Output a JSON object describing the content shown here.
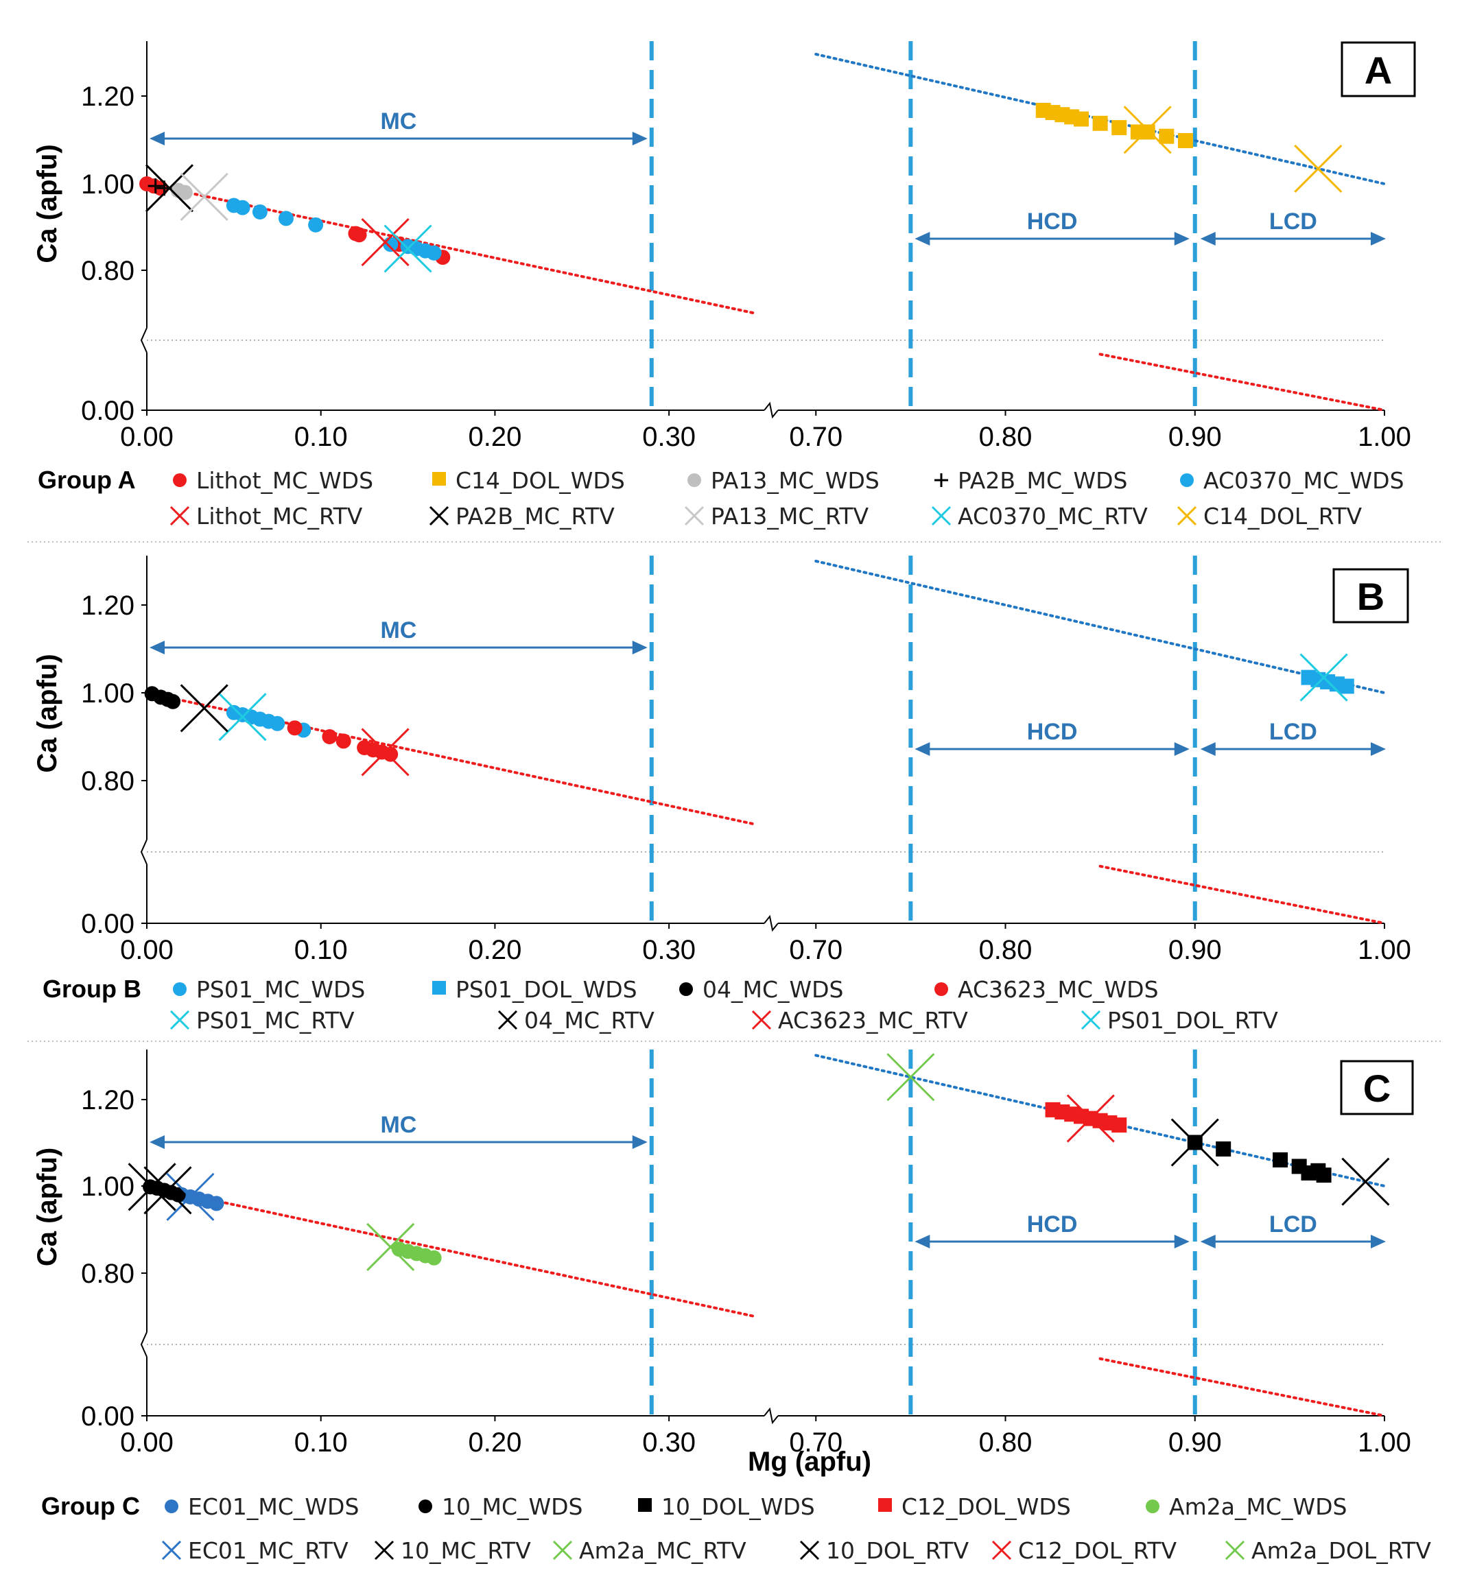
{
  "figure": {
    "xlabel": "Mg (apfu)",
    "xticks": [
      "0.00",
      "0.10",
      "0.20",
      "0.30",
      "0.70",
      "0.80",
      "0.90",
      "1.00"
    ],
    "yticks": [
      "1.20",
      "1.00",
      "0.80",
      "0.00"
    ],
    "ylabel": "Ca (apfu)",
    "colors": {
      "trend_mc": "#ee1c1c",
      "trend_dol": "#1f77c4",
      "boundary": "#2b9fd9",
      "zone_arrow": "#2e75b6"
    }
  },
  "chart_data": [
    {
      "type": "scatter",
      "panel": "A",
      "group_label": "Group A",
      "zones": [
        {
          "label": "MC"
        },
        {
          "label": "HCD"
        },
        {
          "label": "LCD"
        }
      ],
      "x_break": [
        0.35,
        0.7
      ],
      "boundaries": [
        0.29,
        0.75,
        0.9
      ],
      "ylim": [
        0,
        1.32
      ],
      "trend_lines": [
        {
          "name": "MC trend",
          "color": "#ee1c1c",
          "x": [
            0,
            0.35
          ],
          "y": [
            1.0,
            0.7
          ]
        },
        {
          "name": "Dolomite trend",
          "color": "#1f77c4",
          "x": [
            0.7,
            1.0
          ],
          "y": [
            1.3,
            1.0
          ]
        },
        {
          "name": "Dolomite trend (lower)",
          "color": "#ee1c1c",
          "x": [
            0.85,
            1.0
          ],
          "y": [
            0.16,
            0.0
          ]
        }
      ],
      "series": [
        {
          "name": "Lithot_MC_WDS",
          "marker": "circle",
          "color": "#ee1c1c",
          "x": [
            0.0,
            0.004,
            0.008,
            0.12,
            0.122,
            0.145,
            0.17
          ],
          "y": [
            1.0,
            0.995,
            0.99,
            0.885,
            0.882,
            0.86,
            0.83
          ]
        },
        {
          "name": "C14_DOL_WDS",
          "marker": "square",
          "color": "#f5b800",
          "x": [
            0.82,
            0.825,
            0.83,
            0.835,
            0.84,
            0.85,
            0.86,
            0.87,
            0.875,
            0.885,
            0.895
          ],
          "y": [
            1.17,
            1.165,
            1.16,
            1.155,
            1.15,
            1.14,
            1.13,
            1.12,
            1.12,
            1.11,
            1.1
          ]
        },
        {
          "name": "PA13_MC_WDS",
          "marker": "circle",
          "color": "#bfbfbf",
          "x": [
            0.018,
            0.022
          ],
          "y": [
            0.985,
            0.98
          ]
        },
        {
          "name": "PA2B_MC_WDS",
          "marker": "plus",
          "color": "#000000",
          "x": [
            0.005,
            0.01
          ],
          "y": [
            0.995,
            0.99
          ]
        },
        {
          "name": "AC0370_MC_WDS",
          "marker": "circle",
          "color": "#1ea7e8",
          "x": [
            0.05,
            0.055,
            0.065,
            0.08,
            0.097,
            0.14,
            0.15,
            0.155,
            0.16,
            0.165
          ],
          "y": [
            0.95,
            0.945,
            0.935,
            0.92,
            0.905,
            0.86,
            0.855,
            0.85,
            0.845,
            0.84
          ]
        },
        {
          "name": "Lithot_MC_RTV",
          "marker": "x",
          "color": "#ee1c1c",
          "x": [
            0.137
          ],
          "y": [
            0.865
          ]
        },
        {
          "name": "PA2B_MC_RTV",
          "marker": "x",
          "color": "#000000",
          "x": [
            0.013
          ],
          "y": [
            0.99
          ]
        },
        {
          "name": "PA13_MC_RTV",
          "marker": "x",
          "color": "#c8c8c8",
          "x": [
            0.033
          ],
          "y": [
            0.97
          ]
        },
        {
          "name": "AC0370_MC_RTV",
          "marker": "x",
          "color": "#1ecbe1",
          "x": [
            0.15
          ],
          "y": [
            0.85
          ]
        },
        {
          "name": "C14_DOL_RTV",
          "marker": "x",
          "color": "#f5b800",
          "x": [
            0.875,
            0.965
          ],
          "y": [
            1.125,
            1.035
          ]
        }
      ]
    },
    {
      "type": "scatter",
      "panel": "B",
      "group_label": "Group B",
      "zones": [
        {
          "label": "MC"
        },
        {
          "label": "HCD"
        },
        {
          "label": "LCD"
        }
      ],
      "x_break": [
        0.35,
        0.7
      ],
      "boundaries": [
        0.29,
        0.75,
        0.9
      ],
      "ylim": [
        0,
        1.32
      ],
      "trend_lines": [
        {
          "name": "MC trend",
          "color": "#ee1c1c",
          "x": [
            0,
            0.35
          ],
          "y": [
            1.0,
            0.7
          ]
        },
        {
          "name": "Dolomite trend",
          "color": "#1f77c4",
          "x": [
            0.7,
            1.0
          ],
          "y": [
            1.3,
            1.0
          ]
        },
        {
          "name": "Dolomite trend (lower)",
          "color": "#ee1c1c",
          "x": [
            0.85,
            1.0
          ],
          "y": [
            0.16,
            0.0
          ]
        }
      ],
      "series": [
        {
          "name": "PS01_MC_WDS",
          "marker": "circle",
          "color": "#1ea7e8",
          "x": [
            0.05,
            0.055,
            0.06,
            0.065,
            0.07,
            0.075,
            0.09
          ],
          "y": [
            0.955,
            0.95,
            0.945,
            0.94,
            0.935,
            0.93,
            0.915
          ]
        },
        {
          "name": "PS01_DOL_WDS",
          "marker": "square",
          "color": "#1ea7e8",
          "x": [
            0.96,
            0.965,
            0.97,
            0.975,
            0.98
          ],
          "y": [
            1.035,
            1.03,
            1.025,
            1.02,
            1.015
          ]
        },
        {
          "name": "04_MC_WDS",
          "marker": "circle",
          "color": "#000000",
          "x": [
            0.003,
            0.008,
            0.012,
            0.015
          ],
          "y": [
            0.998,
            0.99,
            0.985,
            0.98
          ]
        },
        {
          "name": "AC3623_MC_WDS",
          "marker": "circle",
          "color": "#ee1c1c",
          "x": [
            0.085,
            0.105,
            0.113,
            0.125,
            0.13,
            0.135,
            0.14
          ],
          "y": [
            0.92,
            0.9,
            0.89,
            0.875,
            0.87,
            0.865,
            0.86
          ]
        },
        {
          "name": "PS01_MC_RTV",
          "marker": "x",
          "color": "#1ecbe1",
          "x": [
            0.055
          ],
          "y": [
            0.945
          ]
        },
        {
          "name": "04_MC_RTV",
          "marker": "x",
          "color": "#000000",
          "x": [
            0.033
          ],
          "y": [
            0.965
          ]
        },
        {
          "name": "AC3623_MC_RTV",
          "marker": "x",
          "color": "#ee1c1c",
          "x": [
            0.137
          ],
          "y": [
            0.865
          ]
        },
        {
          "name": "PS01_DOL_RTV",
          "marker": "x",
          "color": "#1ecbe1",
          "x": [
            0.968
          ],
          "y": [
            1.035
          ]
        }
      ]
    },
    {
      "type": "scatter",
      "panel": "C",
      "group_label": "Group C",
      "zones": [
        {
          "label": "MC"
        },
        {
          "label": "HCD"
        },
        {
          "label": "LCD"
        }
      ],
      "x_break": [
        0.35,
        0.7
      ],
      "boundaries": [
        0.29,
        0.75,
        0.9
      ],
      "ylim": [
        0,
        1.32
      ],
      "trend_lines": [
        {
          "name": "MC trend",
          "color": "#ee1c1c",
          "x": [
            0,
            0.35
          ],
          "y": [
            1.0,
            0.7
          ]
        },
        {
          "name": "Dolomite trend",
          "color": "#1f77c4",
          "x": [
            0.7,
            1.0
          ],
          "y": [
            1.3,
            1.0
          ]
        },
        {
          "name": "Dolomite trend (lower)",
          "color": "#ee1c1c",
          "x": [
            0.85,
            1.0
          ],
          "y": [
            0.16,
            0.0
          ]
        }
      ],
      "series": [
        {
          "name": "EC01_MC_WDS",
          "marker": "circle",
          "color": "#2e75c6",
          "x": [
            0.02,
            0.025,
            0.03,
            0.035,
            0.04
          ],
          "y": [
            0.98,
            0.975,
            0.97,
            0.965,
            0.96
          ]
        },
        {
          "name": "10_MC_WDS",
          "marker": "circle",
          "color": "#000000",
          "x": [
            0.002,
            0.006,
            0.01,
            0.014,
            0.018
          ],
          "y": [
            0.998,
            0.995,
            0.99,
            0.985,
            0.98
          ]
        },
        {
          "name": "10_DOL_WDS",
          "marker": "square",
          "color": "#000000",
          "x": [
            0.9,
            0.915,
            0.945,
            0.955,
            0.965,
            0.96,
            0.968
          ],
          "y": [
            1.1,
            1.085,
            1.06,
            1.045,
            1.035,
            1.03,
            1.025
          ]
        },
        {
          "name": "C12_DOL_WDS",
          "marker": "square",
          "color": "#ee1c1c",
          "x": [
            0.825,
            0.83,
            0.835,
            0.84,
            0.845,
            0.85,
            0.855,
            0.86
          ],
          "y": [
            1.175,
            1.17,
            1.165,
            1.16,
            1.155,
            1.15,
            1.145,
            1.14
          ]
        },
        {
          "name": "Am2a_MC_WDS",
          "marker": "circle",
          "color": "#72c94b",
          "x": [
            0.145,
            0.15,
            0.155,
            0.16,
            0.165
          ],
          "y": [
            0.855,
            0.85,
            0.845,
            0.84,
            0.835
          ]
        },
        {
          "name": "EC01_MC_RTV",
          "marker": "x",
          "color": "#2e75c6",
          "x": [
            0.025
          ],
          "y": [
            0.975
          ]
        },
        {
          "name": "10_MC_RTV",
          "marker": "x",
          "color": "#000000",
          "x": [
            0.003,
            0.012
          ],
          "y": [
            0.998,
            0.99
          ]
        },
        {
          "name": "Am2a_MC_RTV",
          "marker": "x",
          "color": "#72c94b",
          "x": [
            0.14
          ],
          "y": [
            0.86
          ]
        },
        {
          "name": "10_DOL_RTV",
          "marker": "x",
          "color": "#000000",
          "x": [
            0.9,
            0.99
          ],
          "y": [
            1.1,
            1.01
          ]
        },
        {
          "name": "C12_DOL_RTV",
          "marker": "x",
          "color": "#ee1c1c",
          "x": [
            0.845
          ],
          "y": [
            1.155
          ]
        },
        {
          "name": "Am2a_DOL_RTV",
          "marker": "x",
          "color": "#72c94b",
          "x": [
            0.75
          ],
          "y": [
            1.25
          ]
        }
      ]
    }
  ]
}
